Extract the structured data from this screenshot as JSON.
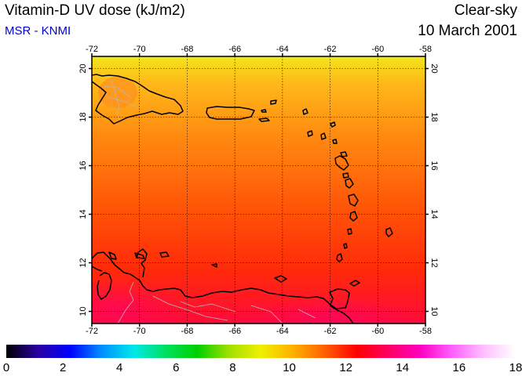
{
  "header": {
    "title": "Vitamin-D UV dose (kJ/m2)",
    "subtitle": "MSR - KNMI",
    "condition": "Clear-sky",
    "date": "10 March 2001"
  },
  "map": {
    "lon_range": [
      -72,
      -58
    ],
    "lat_range": [
      9.5,
      20.5
    ],
    "lon_ticks": [
      "-72",
      "-70",
      "-68",
      "-66",
      "-64",
      "-62",
      "-60",
      "-58"
    ],
    "lat_ticks": [
      "10",
      "12",
      "14",
      "16",
      "18",
      "20"
    ],
    "grid": true
  },
  "colorbar": {
    "ticks": [
      "0",
      "2",
      "4",
      "6",
      "8",
      "10",
      "12",
      "14",
      "16",
      "18"
    ],
    "range": [
      0,
      18
    ],
    "colors": [
      "#000000",
      "#2800a0",
      "#0000ff",
      "#0090ff",
      "#00e8e8",
      "#00e060",
      "#00d000",
      "#a0e000",
      "#f0f000",
      "#ffb000",
      "#ff6000",
      "#ff0000",
      "#ff0060",
      "#ff00c0",
      "#ff60ff",
      "#ffc0ff",
      "#ffffff"
    ]
  }
}
